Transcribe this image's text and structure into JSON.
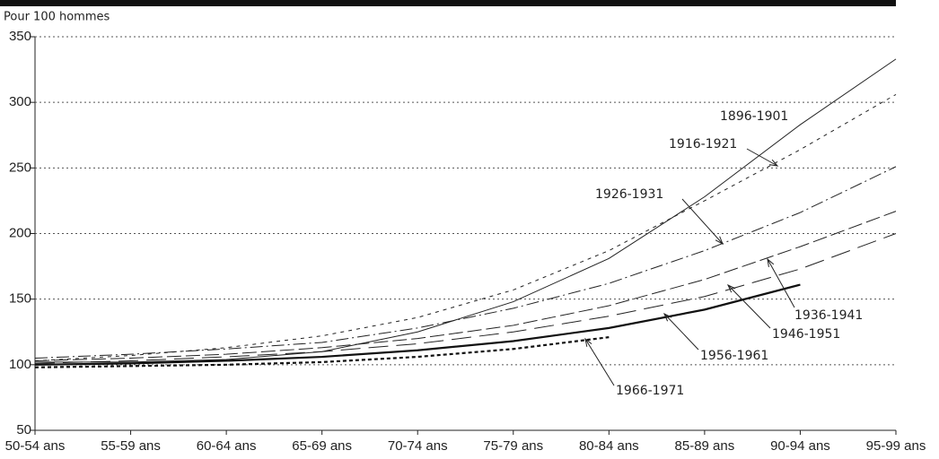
{
  "chart_data": {
    "type": "line",
    "subtitle": "Pour 100 hommes",
    "categories": [
      "50-54 ans",
      "55-59 ans",
      "60-64 ans",
      "65-69 ans",
      "70-74 ans",
      "75-79 ans",
      "80-84 ans",
      "85-89 ans",
      "90-94 ans",
      "95-99 ans"
    ],
    "series": [
      {
        "name": "1896-1901",
        "color": "#222222",
        "width": 1,
        "dash": "",
        "values": [
          102,
          102,
          104,
          110,
          125,
          148,
          181,
          228,
          283,
          333
        ]
      },
      {
        "name": "1916-1921",
        "color": "#222222",
        "width": 1,
        "dash": "4 5",
        "values": [
          103,
          107,
          113,
          122,
          136,
          157,
          187,
          225,
          264,
          306
        ]
      },
      {
        "name": "1926-1931",
        "color": "#222222",
        "width": 1,
        "dash": "14 4 2 4",
        "values": [
          105,
          108,
          112,
          117,
          128,
          143,
          162,
          187,
          216,
          251
        ]
      },
      {
        "name": "1936-1941",
        "color": "#222222",
        "width": 1,
        "dash": "16 5",
        "values": [
          103,
          105,
          108,
          113,
          120,
          130,
          145,
          165,
          190,
          217
        ]
      },
      {
        "name": "1946-1951",
        "color": "#222222",
        "width": 1,
        "dash": "22 9",
        "values": [
          101,
          103,
          106,
          110,
          116,
          125,
          137,
          152,
          173,
          200
        ]
      },
      {
        "name": "1956-1961",
        "color": "#111111",
        "width": 2.2,
        "dash": "",
        "values": [
          100,
          101,
          103,
          106,
          111,
          118,
          128,
          142,
          161,
          null
        ]
      },
      {
        "name": "1966-1971",
        "color": "#111111",
        "width": 2.2,
        "dash": "4 3",
        "values": [
          98,
          99,
          100,
          102,
          106,
          112,
          121,
          null,
          null,
          null
        ]
      }
    ],
    "ylim": [
      50,
      350
    ],
    "yticks": [
      50,
      100,
      150,
      200,
      250,
      300,
      350
    ],
    "grid": true
  }
}
